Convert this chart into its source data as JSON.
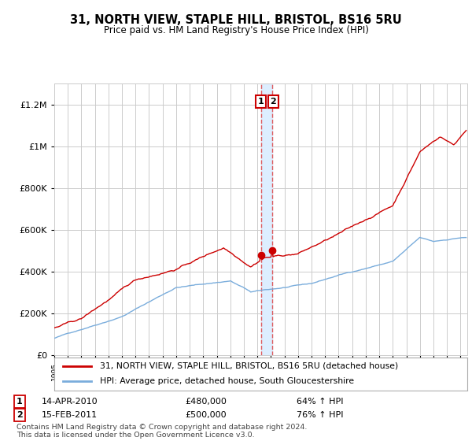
{
  "title": "31, NORTH VIEW, STAPLE HILL, BRISTOL, BS16 5RU",
  "subtitle": "Price paid vs. HM Land Registry's House Price Index (HPI)",
  "legend_line1": "31, NORTH VIEW, STAPLE HILL, BRISTOL, BS16 5RU (detached house)",
  "legend_line2": "HPI: Average price, detached house, South Gloucestershire",
  "annotation1_date": "14-APR-2010",
  "annotation1_price": "£480,000",
  "annotation1_hpi": "64% ↑ HPI",
  "annotation1_year": 2010.29,
  "annotation1_value": 480000,
  "annotation2_date": "15-FEB-2011",
  "annotation2_price": "£500,000",
  "annotation2_hpi": "76% ↑ HPI",
  "annotation2_year": 2011.12,
  "annotation2_value": 500000,
  "footer": "Contains HM Land Registry data © Crown copyright and database right 2024.\nThis data is licensed under the Open Government Licence v3.0.",
  "line1_color": "#cc0000",
  "line2_color": "#7aaddc",
  "vband_color": "#ddeeff",
  "vline_color": "#dd4444",
  "background_color": "#ffffff",
  "grid_color": "#cccccc",
  "ylim": [
    0,
    1300000
  ],
  "yticks": [
    0,
    200000,
    400000,
    600000,
    800000,
    1000000,
    1200000
  ],
  "ytick_labels": [
    "£0",
    "£200K",
    "£400K",
    "£600K",
    "£800K",
    "£1M",
    "£1.2M"
  ],
  "xlim_start": 1995.0,
  "xlim_end": 2025.5
}
